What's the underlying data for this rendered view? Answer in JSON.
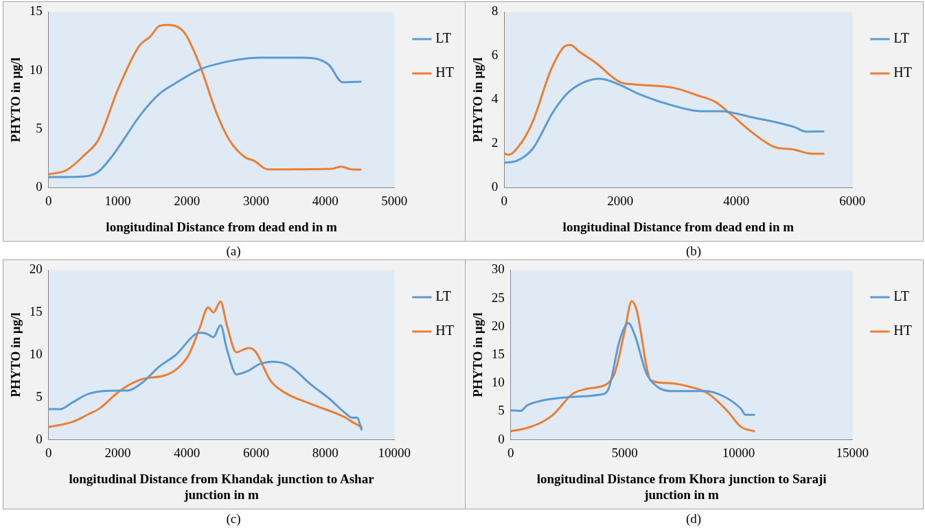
{
  "chart_data": [
    {
      "type": "line",
      "ylabel": "PHYTO in µg/l",
      "xlabel": "longitudinal Distance from dead end in m",
      "annotations": [
        "(a)"
      ],
      "xlim": [
        0,
        5000
      ],
      "xticks": [
        0,
        1000,
        2000,
        3000,
        4000,
        5000
      ],
      "ylim": [
        0,
        15
      ],
      "yticks": [
        0,
        5,
        10,
        15
      ],
      "legend": "top right",
      "grid": false,
      "marker": "none",
      "line_style": "solid",
      "series": [
        {
          "name": "LT",
          "color": "#5b9bd5",
          "x": [
            0,
            520,
            720,
            920,
            1340,
            1600,
            1830,
            2190,
            2710,
            3070,
            3690,
            4050,
            4250,
            4510
          ],
          "values": [
            0.9,
            0.96,
            1.37,
            2.7,
            6.3,
            8.0,
            8.9,
            10.1,
            10.9,
            11.1,
            11.1,
            10.5,
            9.0,
            9.05
          ]
        },
        {
          "name": "HT",
          "color": "#ed7d31",
          "x": [
            0,
            260,
            520,
            720,
            1010,
            1310,
            1470,
            1600,
            1730,
            1900,
            1990,
            2190,
            2420,
            2610,
            2840,
            2970,
            3170,
            4080,
            4230,
            4380,
            4510
          ],
          "values": [
            1.13,
            1.5,
            2.8,
            4.1,
            8.5,
            12.1,
            12.9,
            13.8,
            13.9,
            13.6,
            13.0,
            10.4,
            6.5,
            4.1,
            2.6,
            2.3,
            1.56,
            1.6,
            1.8,
            1.56,
            1.54
          ]
        }
      ]
    },
    {
      "type": "line",
      "ylabel": "PHYTO in µg/l",
      "xlabel": "longitudinal Distance from dead end in m",
      "annotations": [
        "(b)"
      ],
      "xlim": [
        0,
        6000
      ],
      "xticks": [
        0,
        2000,
        4000,
        6000
      ],
      "ylim": [
        0,
        8
      ],
      "yticks": [
        0,
        2,
        4,
        6,
        8
      ],
      "legend": "top right",
      "grid": false,
      "marker": "none",
      "line_style": "solid",
      "series": [
        {
          "name": "LT",
          "color": "#5b9bd5",
          "x": [
            0,
            210,
            490,
            850,
            1130,
            1650,
            2010,
            2290,
            2890,
            3400,
            3720,
            4280,
            5000,
            5200,
            5500
          ],
          "values": [
            1.14,
            1.22,
            1.77,
            3.48,
            4.4,
            4.96,
            4.66,
            4.3,
            3.75,
            3.48,
            3.48,
            3.2,
            2.76,
            2.55,
            2.56
          ]
        },
        {
          "name": "HT",
          "color": "#ed7d31",
          "x": [
            0,
            70,
            290,
            490,
            810,
            1050,
            1140,
            1290,
            1570,
            2000,
            2250,
            2930,
            3330,
            3640,
            3880,
            4280,
            4640,
            5000,
            5280,
            5500
          ],
          "values": [
            1.57,
            1.5,
            2.03,
            3.0,
            5.4,
            6.45,
            6.5,
            6.2,
            5.7,
            4.8,
            4.7,
            4.54,
            4.2,
            3.9,
            3.4,
            2.5,
            1.87,
            1.73,
            1.55,
            1.54
          ]
        }
      ]
    },
    {
      "type": "line",
      "ylabel": "PHYTO in µg/l",
      "xlabel": "longitudinal Distance from Khandak junction to Ashar junction in m",
      "annotations": [
        "(c)"
      ],
      "xlim": [
        0,
        10000
      ],
      "xticks": [
        0,
        2000,
        4000,
        6000,
        8000,
        10000
      ],
      "ylim": [
        0,
        20
      ],
      "yticks": [
        0,
        5,
        10,
        15,
        20
      ],
      "legend": "top right",
      "grid": false,
      "marker": "none",
      "line_style": "solid",
      "series": [
        {
          "name": "LT",
          "color": "#5b9bd5",
          "x": [
            0,
            330,
            690,
            1150,
            2070,
            2270,
            2730,
            3190,
            3650,
            4380,
            4570,
            4770,
            4970,
            5160,
            5430,
            5760,
            6090,
            6480,
            6810,
            7070,
            7530,
            8130,
            8590,
            8780,
            8920,
            9050
          ],
          "values": [
            3.6,
            3.6,
            4.4,
            5.4,
            5.8,
            5.8,
            6.8,
            8.6,
            9.9,
            12.6,
            12.5,
            12.1,
            13.5,
            10.6,
            7.7,
            8.1,
            8.9,
            9.2,
            9.0,
            8.4,
            6.7,
            4.8,
            3.1,
            2.6,
            2.6,
            1.2
          ]
        },
        {
          "name": "HT",
          "color": "#ed7d31",
          "x": [
            0,
            690,
            1150,
            1480,
            2070,
            2600,
            3590,
            4050,
            4380,
            4610,
            4770,
            4970,
            5160,
            5430,
            5620,
            5790,
            5980,
            6410,
            6810,
            7600,
            8590,
            8780,
            9050
          ],
          "values": [
            1.5,
            2.1,
            3.0,
            3.7,
            5.8,
            7.0,
            8.0,
            10.0,
            13.3,
            15.6,
            15.0,
            16.3,
            13.4,
            10.3,
            10.6,
            10.8,
            10.4,
            7.0,
            5.6,
            4.2,
            2.6,
            2.1,
            1.5
          ]
        }
      ]
    },
    {
      "type": "line",
      "ylabel": "PHYTO in µg/l",
      "xlabel": "longitudinal Distance from Khora junction to Saraji junction in m",
      "annotations": [
        "(d)"
      ],
      "xlim": [
        0,
        15000
      ],
      "xticks": [
        0,
        5000,
        10000,
        15000
      ],
      "ylim": [
        0,
        30
      ],
      "yticks": [
        0,
        5,
        10,
        15,
        20,
        25,
        30
      ],
      "legend": "top right",
      "grid": false,
      "marker": "none",
      "line_style": "solid",
      "series": [
        {
          "name": "LT",
          "color": "#5b9bd5",
          "x": [
            0,
            420,
            730,
            1350,
            2810,
            3960,
            4270,
            4790,
            5160,
            5470,
            5940,
            6460,
            7080,
            8540,
            9380,
            10100,
            10310,
            10680
          ],
          "values": [
            5.2,
            5.1,
            6.1,
            6.9,
            7.6,
            8.0,
            8.8,
            17.7,
            20.6,
            18.2,
            11.9,
            9.3,
            8.6,
            8.6,
            7.6,
            5.5,
            4.4,
            4.4
          ]
        },
        {
          "name": "HT",
          "color": "#ed7d31",
          "x": [
            0,
            730,
            1410,
            1880,
            2710,
            3330,
            4270,
            4580,
            5000,
            5310,
            5520,
            6150,
            6980,
            7920,
            8650,
            9480,
            10100,
            10680
          ],
          "values": [
            1.5,
            2.1,
            3.2,
            4.5,
            8.1,
            9.0,
            10.0,
            12.0,
            19.2,
            24.5,
            23.0,
            10.5,
            10.0,
            9.3,
            8.2,
            5.2,
            2.3,
            1.5
          ]
        }
      ]
    }
  ]
}
